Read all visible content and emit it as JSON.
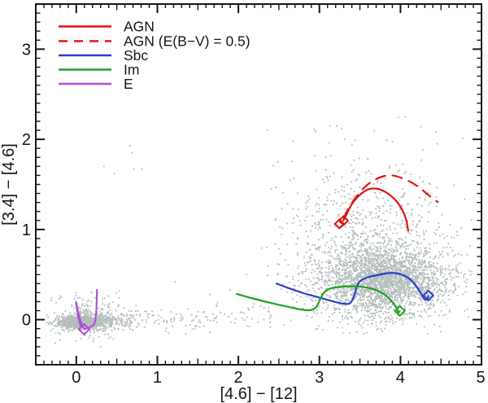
{
  "chart_data": {
    "type": "scatter",
    "title": "",
    "xlabel": "[4.6] − [12]",
    "ylabel": "[3.4] − [4.6]",
    "xlim": [
      -0.5,
      5.0
    ],
    "ylim": [
      -0.5,
      3.5
    ],
    "x_tick_values": [
      0,
      1,
      2,
      3,
      4,
      5
    ],
    "x_tick_labels": [
      "0",
      "1",
      "2",
      "3",
      "4",
      "5"
    ],
    "y_tick_values": [
      0,
      1,
      2,
      3
    ],
    "y_tick_labels": [
      "0",
      "1",
      "2",
      "3"
    ],
    "minor_tick_step": 0.1,
    "grid": false,
    "legend": {
      "position": "top-left",
      "entries": [
        {
          "label": "AGN",
          "color": "#e01413",
          "style": "solid"
        },
        {
          "label": "AGN (E(B−V) = 0.5)",
          "color": "#e01413",
          "style": "dashed"
        },
        {
          "label": "Sbc",
          "color": "#2840c8",
          "style": "solid"
        },
        {
          "label": "Im",
          "color": "#22a122",
          "style": "solid"
        },
        {
          "label": "E",
          "color": "#ae4fd5",
          "style": "solid"
        }
      ]
    },
    "scatter_points": {
      "description": "WISE photometry sources; two dense clouds (stars/ellipticals near origin, dusty galaxies/AGN at upper right)",
      "color": "#b4bcbc",
      "marker_size_px": 1.8,
      "seed": 20140615,
      "clusters": [
        {
          "n": 900,
          "cx": 0.02,
          "cy": -0.03,
          "sx": 0.13,
          "sy": 0.034,
          "clip": [
            -0.4,
            0.85,
            -0.22,
            0.3
          ]
        },
        {
          "n": 380,
          "cx": 0.27,
          "cy": -0.02,
          "sx": 0.18,
          "sy": 0.05,
          "clip": [
            -0.4,
            0.88,
            -0.22,
            0.3
          ]
        },
        {
          "n": 160,
          "cx": 0.12,
          "cy": 0.05,
          "sx": 0.18,
          "sy": 0.13,
          "clip": [
            -0.4,
            0.9,
            -0.3,
            0.55
          ]
        },
        {
          "n": 2300,
          "cx": 3.8,
          "cy": 0.44,
          "sx": 0.38,
          "sy": 0.185,
          "clip": [
            2.3,
            4.9,
            -0.12,
            1.15
          ]
        },
        {
          "n": 750,
          "cx": 3.68,
          "cy": 0.52,
          "sx": 0.56,
          "sy": 0.34,
          "clip": [
            2.05,
            4.9,
            -0.18,
            1.9
          ]
        },
        {
          "n": 430,
          "cx": 3.57,
          "cy": 1.0,
          "sx": 0.53,
          "sy": 0.46,
          "clip": [
            2.3,
            4.88,
            -0.1,
            2.3
          ]
        }
      ],
      "band": {
        "n": 140,
        "x0": 0.55,
        "x1": 2.4,
        "pow": 1.35,
        "cy": 0.015,
        "sy0": 0.055,
        "sy1": 0.095
      },
      "outliers": [
        [
          0.66,
          1.93
        ],
        [
          0.69,
          1.85
        ],
        [
          0.34,
          1.7
        ],
        [
          0.47,
          1.62
        ],
        [
          0.71,
          1.67
        ],
        [
          0.81,
          1.67
        ],
        [
          2.49,
          1.75
        ],
        [
          2.93,
          2.11
        ],
        [
          2.95,
          2.09
        ],
        [
          3.31,
          2.0
        ],
        [
          4.06,
          2.25
        ],
        [
          4.25,
          2.14
        ],
        [
          4.44,
          2.08
        ],
        [
          4.77,
          2.01
        ],
        [
          -0.26,
          -0.26
        ],
        [
          0.06,
          -0.21
        ],
        [
          0.3,
          -0.3
        ],
        [
          1.14,
          -0.15
        ],
        [
          3.28,
          -0.09
        ],
        [
          1.22,
          0.42
        ],
        [
          1.65,
          0.28
        ],
        [
          2.1,
          0.5
        ],
        [
          1.9,
          0.33
        ]
      ]
    },
    "tracks": [
      {
        "name": "AGN",
        "color": "#e01413",
        "style": "solid",
        "width": 2.2,
        "points": [
          [
            3.295,
            1.1
          ],
          [
            3.33,
            1.16
          ],
          [
            3.38,
            1.25
          ],
          [
            3.44,
            1.33
          ],
          [
            3.52,
            1.4
          ],
          [
            3.6,
            1.445
          ],
          [
            3.67,
            1.455
          ],
          [
            3.76,
            1.44
          ],
          [
            3.86,
            1.39
          ],
          [
            3.95,
            1.315
          ],
          [
            4.02,
            1.22
          ],
          [
            4.07,
            1.11
          ],
          [
            4.095,
            0.985
          ]
        ]
      },
      {
        "name": "AGN (E(B−V) = 0.5)",
        "color": "#e01413",
        "style": "dashed",
        "width": 2.2,
        "points": [
          [
            3.3,
            1.13
          ],
          [
            3.37,
            1.25
          ],
          [
            3.46,
            1.37
          ],
          [
            3.56,
            1.47
          ],
          [
            3.67,
            1.545
          ],
          [
            3.79,
            1.59
          ],
          [
            3.9,
            1.6
          ],
          [
            4.02,
            1.57
          ],
          [
            4.14,
            1.52
          ],
          [
            4.26,
            1.445
          ],
          [
            4.37,
            1.365
          ],
          [
            4.46,
            1.305
          ]
        ]
      },
      {
        "name": "Sbc",
        "color": "#2840c8",
        "style": "solid",
        "width": 2.2,
        "points": [
          [
            2.47,
            0.4
          ],
          [
            2.62,
            0.35
          ],
          [
            2.8,
            0.295
          ],
          [
            3.0,
            0.245
          ],
          [
            3.18,
            0.2
          ],
          [
            3.31,
            0.175
          ],
          [
            3.38,
            0.185
          ],
          [
            3.425,
            0.255
          ],
          [
            3.455,
            0.35
          ],
          [
            3.5,
            0.425
          ],
          [
            3.59,
            0.467
          ],
          [
            3.71,
            0.493
          ],
          [
            3.84,
            0.515
          ],
          [
            3.95,
            0.515
          ],
          [
            4.05,
            0.488
          ],
          [
            4.13,
            0.438
          ],
          [
            4.2,
            0.365
          ],
          [
            4.255,
            0.285
          ],
          [
            4.29,
            0.232
          ],
          [
            4.315,
            0.218
          ],
          [
            4.335,
            0.238
          ],
          [
            4.345,
            0.262
          ]
        ]
      },
      {
        "name": "Im",
        "color": "#22a122",
        "style": "solid",
        "width": 2.2,
        "points": [
          [
            1.98,
            0.285
          ],
          [
            2.18,
            0.235
          ],
          [
            2.4,
            0.185
          ],
          [
            2.6,
            0.145
          ],
          [
            2.76,
            0.115
          ],
          [
            2.88,
            0.105
          ],
          [
            2.955,
            0.135
          ],
          [
            3.005,
            0.215
          ],
          [
            3.055,
            0.3
          ],
          [
            3.13,
            0.345
          ],
          [
            3.27,
            0.365
          ],
          [
            3.42,
            0.37
          ],
          [
            3.56,
            0.36
          ],
          [
            3.7,
            0.328
          ],
          [
            3.82,
            0.268
          ],
          [
            3.905,
            0.19
          ],
          [
            3.955,
            0.125
          ],
          [
            3.975,
            0.082
          ],
          [
            3.99,
            0.092
          ]
        ]
      },
      {
        "name": "E",
        "color": "#ae4fd5",
        "style": "solid",
        "width": 2.1,
        "points": [
          [
            0.255,
            0.33
          ],
          [
            0.252,
            0.22
          ],
          [
            0.247,
            0.1
          ],
          [
            0.236,
            0.0
          ],
          [
            0.22,
            -0.048
          ],
          [
            0.193,
            -0.072
          ],
          [
            0.158,
            -0.086
          ],
          [
            0.122,
            -0.097
          ],
          [
            0.097,
            -0.104
          ],
          [
            0.058,
            -0.03
          ],
          [
            0.022,
            0.085
          ],
          [
            -0.004,
            0.2
          ],
          [
            0.013,
            0.085
          ],
          [
            0.04,
            -0.03
          ],
          [
            0.057,
            -0.075
          ]
        ]
      }
    ],
    "end_markers": [
      {
        "x": 3.247,
        "y": 1.062,
        "r": 5.5,
        "color": "#e01413"
      },
      {
        "x": 3.297,
        "y": 1.098,
        "r": 5.5,
        "color": "#e01413"
      },
      {
        "x": 4.345,
        "y": 0.268,
        "r": 6.0,
        "color": "#2840c8"
      },
      {
        "x": 3.993,
        "y": 0.098,
        "r": 6.0,
        "color": "#22a122"
      },
      {
        "x": 0.096,
        "y": -0.107,
        "r": 6.5,
        "color": "#ae4fd5"
      }
    ]
  }
}
